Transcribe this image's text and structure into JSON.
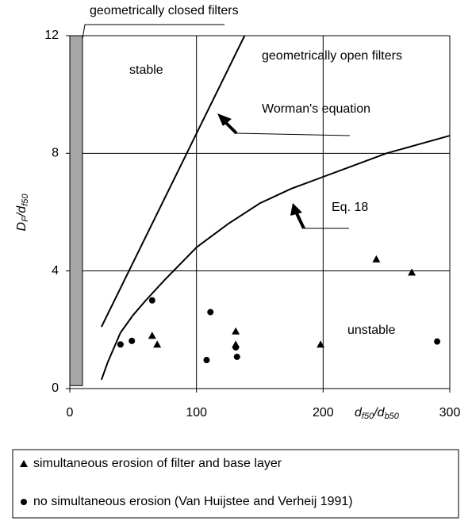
{
  "chart_data": {
    "type": "scatter",
    "xlim": [
      0,
      300
    ],
    "ylim": [
      0,
      12
    ],
    "xticks": [
      0,
      100,
      200,
      300
    ],
    "yticks": [
      0,
      4,
      8,
      12
    ],
    "grid": true,
    "xlabel": [
      "d",
      "f50",
      "/",
      "d",
      "b50"
    ],
    "ylabel": [
      "D",
      "F",
      "/",
      "d",
      "f50"
    ],
    "series": [
      {
        "name": "simultaneous erosion of filter and base layer",
        "marker": "triangle",
        "color": "#000000",
        "x": [
          65,
          69,
          131,
          131,
          198,
          242,
          270
        ],
        "values": [
          1.8,
          1.5,
          1.95,
          1.5,
          1.5,
          4.4,
          3.95
        ]
      },
      {
        "name": "no simultaneous erosion (Van Huijstee and Verheij 1991)",
        "marker": "circle",
        "color": "#000000",
        "x": [
          40,
          49,
          65,
          108,
          111,
          131,
          132,
          290
        ],
        "values": [
          1.5,
          1.62,
          3.0,
          0.97,
          2.6,
          1.4,
          1.08,
          1.6
        ]
      }
    ],
    "lines": [
      {
        "color": "#000000",
        "x": [
          25,
          138
        ],
        "values": [
          2.1,
          12
        ]
      },
      {
        "color": "#000000",
        "x": [
          25,
          30,
          40,
          50,
          60,
          75,
          100,
          125,
          150,
          175,
          200,
          225,
          250,
          275,
          300
        ],
        "values": [
          0.3,
          0.9,
          1.9,
          2.5,
          3.0,
          3.7,
          4.8,
          5.6,
          6.3,
          6.8,
          7.2,
          7.6,
          8.0,
          8.3,
          8.6
        ]
      }
    ],
    "band": {
      "color": "#a6a6a6",
      "x": [
        0,
        10
      ],
      "y": [
        0.1,
        12
      ]
    },
    "annotations": [
      "geometrically closed filters",
      "stable",
      "geometrically open filters",
      "Worman's equation",
      "Eq. 18",
      "unstable"
    ]
  }
}
